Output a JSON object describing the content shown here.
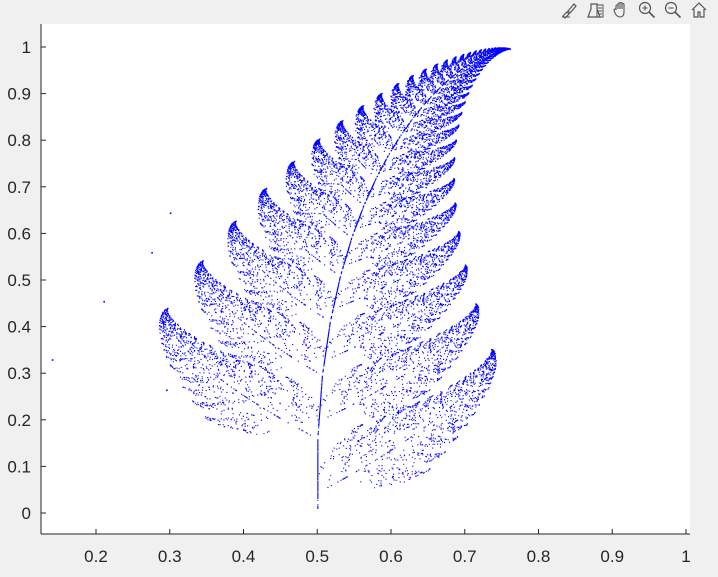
{
  "toolbar": {
    "buttons": [
      {
        "icon": "brush-icon"
      },
      {
        "icon": "datatip-icon"
      },
      {
        "icon": "pan-icon"
      },
      {
        "icon": "zoom-in-icon"
      },
      {
        "icon": "zoom-out-icon"
      },
      {
        "icon": "home-icon"
      }
    ]
  },
  "colors": {
    "figure_background": "#f0f0f0",
    "axes_background": "#ffffff",
    "marker": "#0000ff",
    "axis_line": "#262626",
    "toolbar_icon": "#555555"
  },
  "chart_data": {
    "type": "scatter",
    "title": "",
    "xlabel": "",
    "ylabel": "",
    "xlim": [
      0.13,
      1.0
    ],
    "ylim": [
      -0.05,
      1.05
    ],
    "xticks": [
      0.2,
      0.3,
      0.4,
      0.5,
      0.6,
      0.7,
      0.8,
      0.9,
      1
    ],
    "xtick_labels": [
      "0.2",
      "0.3",
      "0.4",
      "0.5",
      "0.6",
      "0.7",
      "0.8",
      "0.9",
      "1"
    ],
    "yticks": [
      0,
      0.1,
      0.2,
      0.3,
      0.4,
      0.5,
      0.6,
      0.7,
      0.8,
      0.9,
      1
    ],
    "ytick_labels": [
      "0",
      "0.1",
      "0.2",
      "0.3",
      "0.4",
      "0.5",
      "0.6",
      "0.7",
      "0.8",
      "0.9",
      "1"
    ],
    "grid": false,
    "legend": "none",
    "marker": "point",
    "series": [
      {
        "color": "#0000ff",
        "points": [
          [
            0.5,
            0.0
          ],
          [
            0.5,
            0.05
          ],
          [
            0.5,
            0.1
          ],
          [
            0.5,
            0.15
          ],
          [
            0.5,
            0.2
          ],
          [
            0.505,
            0.25
          ],
          [
            0.51,
            0.3
          ],
          [
            0.515,
            0.35
          ],
          [
            0.52,
            0.4
          ],
          [
            0.53,
            0.45
          ],
          [
            0.54,
            0.5
          ],
          [
            0.55,
            0.55
          ],
          [
            0.56,
            0.6
          ],
          [
            0.57,
            0.65
          ],
          [
            0.58,
            0.7
          ],
          [
            0.6,
            0.75
          ],
          [
            0.62,
            0.8
          ],
          [
            0.64,
            0.85
          ],
          [
            0.66,
            0.9
          ],
          [
            0.69,
            0.94
          ],
          [
            0.72,
            0.97
          ],
          [
            0.76,
            0.995
          ],
          [
            0.55,
            0.06
          ],
          [
            0.6,
            0.1
          ],
          [
            0.65,
            0.15
          ],
          [
            0.7,
            0.22
          ],
          [
            0.74,
            0.33
          ],
          [
            0.45,
            0.2
          ],
          [
            0.4,
            0.22
          ],
          [
            0.35,
            0.28
          ],
          [
            0.32,
            0.35
          ],
          [
            0.31,
            0.42
          ],
          [
            0.56,
            0.25
          ],
          [
            0.62,
            0.3
          ],
          [
            0.68,
            0.36
          ],
          [
            0.72,
            0.44
          ],
          [
            0.46,
            0.33
          ],
          [
            0.42,
            0.38
          ],
          [
            0.38,
            0.45
          ],
          [
            0.35,
            0.5
          ],
          [
            0.34,
            0.54
          ],
          [
            0.58,
            0.4
          ],
          [
            0.64,
            0.44
          ],
          [
            0.68,
            0.5
          ],
          [
            0.48,
            0.47
          ],
          [
            0.45,
            0.52
          ],
          [
            0.41,
            0.57
          ],
          [
            0.39,
            0.6
          ],
          [
            0.38,
            0.62
          ],
          [
            0.59,
            0.53
          ],
          [
            0.63,
            0.57
          ],
          [
            0.66,
            0.63
          ],
          [
            0.52,
            0.58
          ],
          [
            0.49,
            0.63
          ],
          [
            0.46,
            0.68
          ],
          [
            0.44,
            0.7
          ],
          [
            0.62,
            0.66
          ],
          [
            0.64,
            0.71
          ],
          [
            0.65,
            0.76
          ],
          [
            0.55,
            0.7
          ],
          [
            0.53,
            0.74
          ],
          [
            0.51,
            0.79
          ],
          [
            0.5,
            0.81
          ],
          [
            0.58,
            0.8
          ],
          [
            0.57,
            0.85
          ],
          [
            0.6,
            0.88
          ],
          [
            0.14,
            0.33
          ],
          [
            0.21,
            0.46
          ],
          [
            0.275,
            0.56
          ],
          [
            0.3,
            0.645
          ],
          [
            0.295,
            0.265
          ],
          [
            0.34,
            0.35
          ]
        ]
      }
    ]
  }
}
